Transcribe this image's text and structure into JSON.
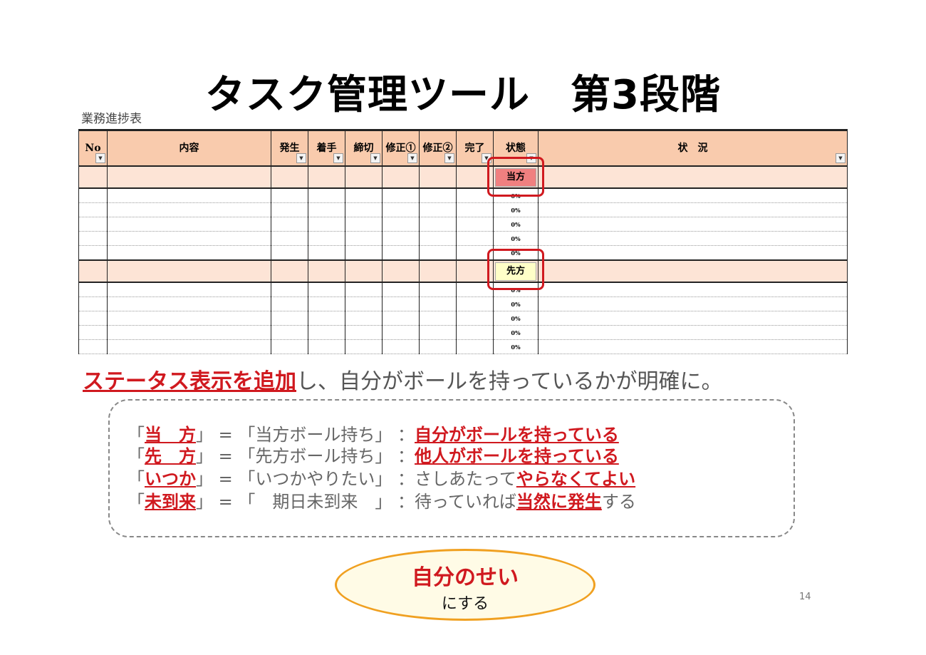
{
  "title": "タスク管理ツール　第3段階",
  "table_caption": "業務進捗表",
  "columns": [
    "No",
    "内容",
    "発生",
    "着手",
    "締切",
    "修正①",
    "修正②",
    "完了",
    "状態",
    "状　況"
  ],
  "groups": [
    {
      "status": "当方",
      "status_color": "#f08080",
      "sub_rows": [
        "0%",
        "0%",
        "0%",
        "0%",
        "0%"
      ]
    },
    {
      "status": "先方",
      "status_color": "#ffffc8",
      "sub_rows": [
        "0%",
        "0%",
        "0%",
        "0%",
        "0%"
      ]
    }
  ],
  "subtitle": {
    "highlight": "ステータス表示を追加",
    "rest": "し、自分がボールを持っているかが明確に。"
  },
  "legend": [
    {
      "key": "当　方",
      "meaning": "「当方ボール持ち」",
      "pre": "",
      "emph": "自分がボールを持っている",
      "post": ""
    },
    {
      "key": "先　方",
      "meaning": "「先方ボール持ち」",
      "pre": "",
      "emph": "他人がボールを持っている",
      "post": ""
    },
    {
      "key": "いつか",
      "meaning": "「いつかやりたい」",
      "pre": "さしあたって",
      "emph": "やらなくてよい",
      "post": ""
    },
    {
      "key": "未到来",
      "meaning": "「　期日未到来　」",
      "pre": "待っていれば",
      "emph": "当然に発生",
      "post": "する"
    }
  ],
  "callout": {
    "main": "自分のせい",
    "sub": "にする"
  },
  "page_number": "14",
  "colors": {
    "accent_red": "#d0191f",
    "header_fill": "#f9cbad",
    "ellipse_border": "#f0a020"
  }
}
